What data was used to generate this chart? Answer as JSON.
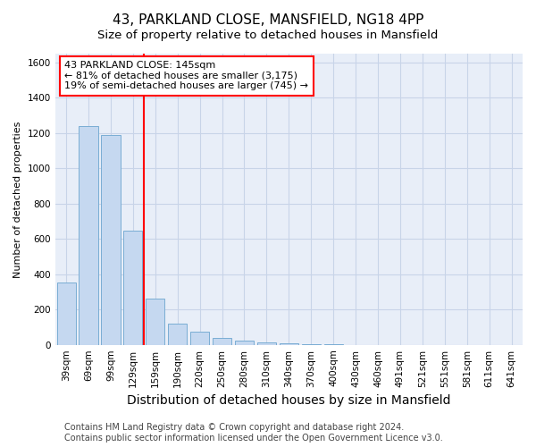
{
  "title": "43, PARKLAND CLOSE, MANSFIELD, NG18 4PP",
  "subtitle": "Size of property relative to detached houses in Mansfield",
  "xlabel": "Distribution of detached houses by size in Mansfield",
  "ylabel": "Number of detached properties",
  "categories": [
    "39sqm",
    "69sqm",
    "99sqm",
    "129sqm",
    "159sqm",
    "190sqm",
    "220sqm",
    "250sqm",
    "280sqm",
    "310sqm",
    "340sqm",
    "370sqm",
    "400sqm",
    "430sqm",
    "460sqm",
    "491sqm",
    "521sqm",
    "551sqm",
    "581sqm",
    "611sqm",
    "641sqm"
  ],
  "values": [
    355,
    1240,
    1190,
    645,
    260,
    120,
    75,
    40,
    25,
    15,
    10,
    5,
    3,
    0,
    0,
    0,
    0,
    0,
    0,
    0,
    0
  ],
  "bar_color": "#c5d8f0",
  "bar_edge_color": "#7aadd4",
  "red_line_x": 3.5,
  "annotation_text": "43 PARKLAND CLOSE: 145sqm\n← 81% of detached houses are smaller (3,175)\n19% of semi-detached houses are larger (745) →",
  "annotation_box_color": "white",
  "annotation_box_edge_color": "red",
  "ylim": [
    0,
    1650
  ],
  "yticks": [
    0,
    200,
    400,
    600,
    800,
    1000,
    1200,
    1400,
    1600
  ],
  "grid_color": "#c8d4e8",
  "background_color": "#e8eef8",
  "footer": "Contains HM Land Registry data © Crown copyright and database right 2024.\nContains public sector information licensed under the Open Government Licence v3.0.",
  "title_fontsize": 11,
  "subtitle_fontsize": 9.5,
  "xlabel_fontsize": 10,
  "ylabel_fontsize": 8,
  "annotation_fontsize": 8,
  "footer_fontsize": 7,
  "tick_fontsize": 7.5
}
